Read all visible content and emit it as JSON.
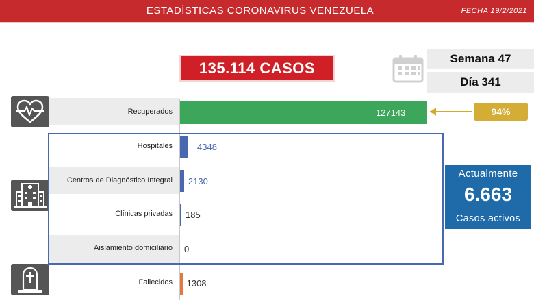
{
  "header": {
    "title": "ESTADÍSTICAS CORONAVIRUS VENEZUELA",
    "date": "FECHA 19/2/2021"
  },
  "total": {
    "label": "135.114 CASOS"
  },
  "period": {
    "week": "Semana 47",
    "day": "Día 341"
  },
  "percent": {
    "label": "94%"
  },
  "active": {
    "title": "Actualmente",
    "value": "6.663",
    "subtitle": "Casos activos"
  },
  "colors": {
    "recovered": "#3ca65a",
    "hospital": "#4a68b0",
    "deaths": "#e07b3d",
    "header": "#c62a2c",
    "active": "#1f6aa8",
    "percent": "#d4ad36"
  },
  "icons": [
    "heart-pulse-icon",
    "hospital-building-icon",
    "tombstone-icon",
    "calendar-icon"
  ],
  "chart_data": {
    "type": "bar",
    "orientation": "horizontal",
    "categories": [
      "Recuperados",
      "Hospitales",
      "Centros de Diagnóstico Integral",
      "Clínicas privadas",
      "Aislamiento domiciliario",
      "Fallecidos"
    ],
    "values": [
      127143,
      4348,
      2130,
      185,
      0,
      1308
    ]
  }
}
